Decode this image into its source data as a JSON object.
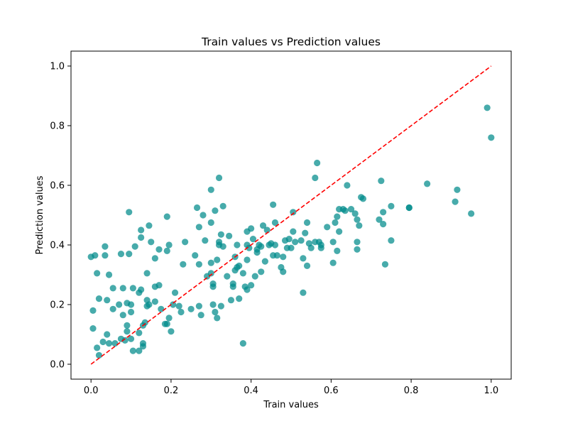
{
  "chart_data": {
    "type": "scatter",
    "title": "Train values vs Prediction values",
    "xlabel": "Train values",
    "ylabel": "Prediction values",
    "xlim": [
      -0.05,
      1.05
    ],
    "ylim": [
      -0.05,
      1.05
    ],
    "xticks": [
      0.0,
      0.2,
      0.4,
      0.6,
      0.8,
      1.0
    ],
    "yticks": [
      0.0,
      0.2,
      0.4,
      0.6,
      0.8,
      1.0
    ],
    "xtick_labels": [
      "0.0",
      "0.2",
      "0.4",
      "0.6",
      "0.8",
      "1.0"
    ],
    "ytick_labels": [
      "0.0",
      "0.2",
      "0.4",
      "0.6",
      "0.8",
      "1.0"
    ],
    "grid": false,
    "marker_color": "#008b8b",
    "reference_line": {
      "x": [
        0,
        1
      ],
      "y": [
        0,
        1
      ],
      "color": "#ff0000",
      "style": "dashed"
    },
    "points": [
      [
        0.0,
        0.36
      ],
      [
        0.01,
        0.365
      ],
      [
        0.02,
        0.22
      ],
      [
        0.015,
        0.305
      ],
      [
        0.005,
        0.18
      ],
      [
        0.005,
        0.12
      ],
      [
        0.015,
        0.055
      ],
      [
        0.02,
        0.03
      ],
      [
        0.03,
        0.075
      ],
      [
        0.035,
        0.365
      ],
      [
        0.035,
        0.395
      ],
      [
        0.04,
        0.215
      ],
      [
        0.04,
        0.1
      ],
      [
        0.045,
        0.07
      ],
      [
        0.045,
        0.3
      ],
      [
        0.055,
        0.255
      ],
      [
        0.055,
        0.185
      ],
      [
        0.06,
        0.07
      ],
      [
        0.07,
        0.2
      ],
      [
        0.075,
        0.085
      ],
      [
        0.075,
        0.37
      ],
      [
        0.08,
        0.255
      ],
      [
        0.08,
        0.165
      ],
      [
        0.085,
        0.08
      ],
      [
        0.09,
        0.205
      ],
      [
        0.09,
        0.13
      ],
      [
        0.09,
        0.11
      ],
      [
        0.095,
        0.51
      ],
      [
        0.095,
        0.37
      ],
      [
        0.1,
        0.2
      ],
      [
        0.1,
        0.175
      ],
      [
        0.1,
        0.085
      ],
      [
        0.105,
        0.255
      ],
      [
        0.105,
        0.045
      ],
      [
        0.11,
        0.395
      ],
      [
        0.12,
        0.24
      ],
      [
        0.12,
        0.105
      ],
      [
        0.12,
        0.045
      ],
      [
        0.125,
        0.25
      ],
      [
        0.125,
        0.45
      ],
      [
        0.125,
        0.425
      ],
      [
        0.13,
        0.13
      ],
      [
        0.13,
        0.07
      ],
      [
        0.13,
        0.06
      ],
      [
        0.135,
        0.14
      ],
      [
        0.14,
        0.215
      ],
      [
        0.14,
        0.305
      ],
      [
        0.14,
        0.195
      ],
      [
        0.145,
        0.2
      ],
      [
        0.145,
        0.465
      ],
      [
        0.15,
        0.41
      ],
      [
        0.16,
        0.355
      ],
      [
        0.16,
        0.21
      ],
      [
        0.16,
        0.26
      ],
      [
        0.17,
        0.265
      ],
      [
        0.17,
        0.385
      ],
      [
        0.175,
        0.185
      ],
      [
        0.185,
        0.135
      ],
      [
        0.19,
        0.38
      ],
      [
        0.19,
        0.495
      ],
      [
        0.19,
        0.135
      ],
      [
        0.195,
        0.4
      ],
      [
        0.195,
        0.155
      ],
      [
        0.2,
        0.11
      ],
      [
        0.205,
        0.2
      ],
      [
        0.21,
        0.24
      ],
      [
        0.22,
        0.195
      ],
      [
        0.225,
        0.175
      ],
      [
        0.23,
        0.335
      ],
      [
        0.235,
        0.41
      ],
      [
        0.25,
        0.185
      ],
      [
        0.26,
        0.365
      ],
      [
        0.265,
        0.525
      ],
      [
        0.27,
        0.335
      ],
      [
        0.27,
        0.46
      ],
      [
        0.27,
        0.195
      ],
      [
        0.275,
        0.165
      ],
      [
        0.28,
        0.5
      ],
      [
        0.285,
        0.415
      ],
      [
        0.29,
        0.295
      ],
      [
        0.3,
        0.585
      ],
      [
        0.3,
        0.475
      ],
      [
        0.3,
        0.34
      ],
      [
        0.3,
        0.305
      ],
      [
        0.305,
        0.27
      ],
      [
        0.305,
        0.26
      ],
      [
        0.305,
        0.2
      ],
      [
        0.31,
        0.175
      ],
      [
        0.31,
        0.515
      ],
      [
        0.315,
        0.35
      ],
      [
        0.315,
        0.155
      ],
      [
        0.32,
        0.41
      ],
      [
        0.32,
        0.4
      ],
      [
        0.32,
        0.625
      ],
      [
        0.325,
        0.435
      ],
      [
        0.325,
        0.195
      ],
      [
        0.33,
        0.395
      ],
      [
        0.33,
        0.53
      ],
      [
        0.34,
        0.295
      ],
      [
        0.345,
        0.43
      ],
      [
        0.35,
        0.215
      ],
      [
        0.355,
        0.27
      ],
      [
        0.355,
        0.26
      ],
      [
        0.36,
        0.315
      ],
      [
        0.36,
        0.36
      ],
      [
        0.365,
        0.4
      ],
      [
        0.365,
        0.325
      ],
      [
        0.37,
        0.22
      ],
      [
        0.37,
        0.33
      ],
      [
        0.38,
        0.07
      ],
      [
        0.38,
        0.305
      ],
      [
        0.385,
        0.26
      ],
      [
        0.39,
        0.35
      ],
      [
        0.39,
        0.4
      ],
      [
        0.39,
        0.445
      ],
      [
        0.39,
        0.25
      ],
      [
        0.395,
        0.39
      ],
      [
        0.4,
        0.265
      ],
      [
        0.4,
        0.455
      ],
      [
        0.405,
        0.42
      ],
      [
        0.41,
        0.295
      ],
      [
        0.415,
        0.375
      ],
      [
        0.415,
        0.385
      ],
      [
        0.42,
        0.4
      ],
      [
        0.425,
        0.395
      ],
      [
        0.425,
        0.31
      ],
      [
        0.43,
        0.465
      ],
      [
        0.435,
        0.345
      ],
      [
        0.44,
        0.45
      ],
      [
        0.445,
        0.4
      ],
      [
        0.45,
        0.405
      ],
      [
        0.455,
        0.365
      ],
      [
        0.455,
        0.535
      ],
      [
        0.46,
        0.475
      ],
      [
        0.46,
        0.4
      ],
      [
        0.465,
        0.365
      ],
      [
        0.475,
        0.325
      ],
      [
        0.48,
        0.36
      ],
      [
        0.48,
        0.31
      ],
      [
        0.485,
        0.415
      ],
      [
        0.49,
        0.39
      ],
      [
        0.495,
        0.42
      ],
      [
        0.5,
        0.39
      ],
      [
        0.505,
        0.51
      ],
      [
        0.505,
        0.445
      ],
      [
        0.51,
        0.41
      ],
      [
        0.525,
        0.415
      ],
      [
        0.53,
        0.355
      ],
      [
        0.53,
        0.24
      ],
      [
        0.535,
        0.44
      ],
      [
        0.54,
        0.33
      ],
      [
        0.54,
        0.475
      ],
      [
        0.545,
        0.405
      ],
      [
        0.55,
        0.39
      ],
      [
        0.56,
        0.625
      ],
      [
        0.56,
        0.41
      ],
      [
        0.565,
        0.675
      ],
      [
        0.57,
        0.41
      ],
      [
        0.575,
        0.4
      ],
      [
        0.575,
        0.39
      ],
      [
        0.59,
        0.46
      ],
      [
        0.605,
        0.34
      ],
      [
        0.605,
        0.41
      ],
      [
        0.61,
        0.475
      ],
      [
        0.615,
        0.38
      ],
      [
        0.615,
        0.495
      ],
      [
        0.62,
        0.52
      ],
      [
        0.62,
        0.445
      ],
      [
        0.63,
        0.52
      ],
      [
        0.635,
        0.515
      ],
      [
        0.64,
        0.6
      ],
      [
        0.65,
        0.52
      ],
      [
        0.66,
        0.505
      ],
      [
        0.665,
        0.41
      ],
      [
        0.665,
        0.485
      ],
      [
        0.665,
        0.385
      ],
      [
        0.67,
        0.465
      ],
      [
        0.675,
        0.56
      ],
      [
        0.68,
        0.555
      ],
      [
        0.72,
        0.485
      ],
      [
        0.725,
        0.615
      ],
      [
        0.73,
        0.51
      ],
      [
        0.73,
        0.47
      ],
      [
        0.735,
        0.335
      ],
      [
        0.75,
        0.415
      ],
      [
        0.75,
        0.53
      ],
      [
        0.795,
        0.525
      ],
      [
        0.795,
        0.525
      ],
      [
        0.84,
        0.605
      ],
      [
        0.91,
        0.545
      ],
      [
        0.915,
        0.585
      ],
      [
        0.95,
        0.505
      ],
      [
        0.99,
        0.86
      ],
      [
        1.0,
        0.76
      ]
    ]
  }
}
